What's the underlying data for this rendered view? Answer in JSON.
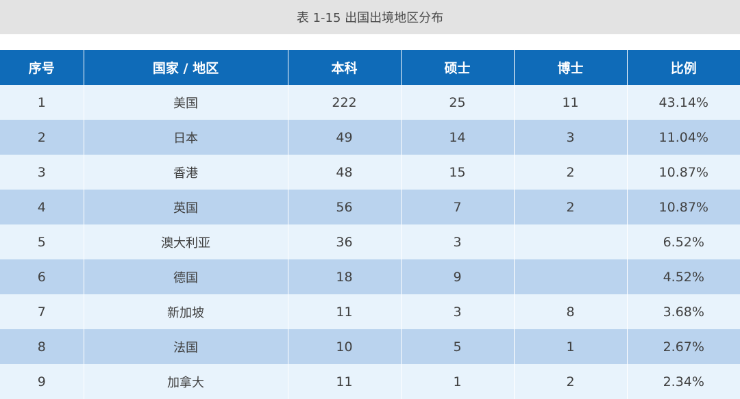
{
  "caption": "表 1-15  出国出境地区分布",
  "table": {
    "headers": [
      "序号",
      "国家 / 地区",
      "本科",
      "硕士",
      "博士",
      "比例"
    ],
    "rows": [
      [
        "1",
        "美国",
        "222",
        "25",
        "11",
        "43.14%"
      ],
      [
        "2",
        "日本",
        "49",
        "14",
        "3",
        "11.04%"
      ],
      [
        "3",
        "香港",
        "48",
        "15",
        "2",
        "10.87%"
      ],
      [
        "4",
        "英国",
        "56",
        "7",
        "2",
        "10.87%"
      ],
      [
        "5",
        "澳大利亚",
        "36",
        "3",
        "",
        "6.52%"
      ],
      [
        "6",
        "德国",
        "18",
        "9",
        "",
        "4.52%"
      ],
      [
        "7",
        "新加坡",
        "11",
        "3",
        "8",
        "3.68%"
      ],
      [
        "8",
        "法国",
        "10",
        "5",
        "1",
        "2.67%"
      ],
      [
        "9",
        "加拿大",
        "11",
        "1",
        "2",
        "2.34%"
      ]
    ]
  },
  "colors": {
    "header_bg": "#0f6bb8",
    "row_light": "#e8f3fc",
    "row_dark": "#bad3ee",
    "caption_bg": "#e3e3e3"
  }
}
